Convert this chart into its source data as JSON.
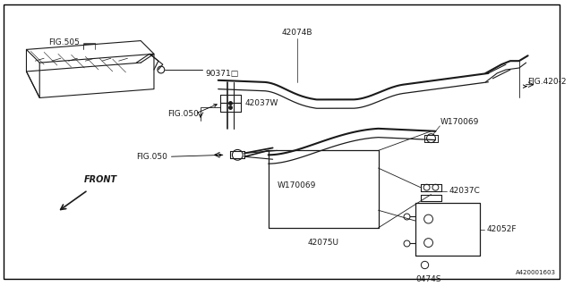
{
  "bg_color": "#ffffff",
  "border_color": "#000000",
  "line_color": "#1a1a1a",
  "fig_width": 6.4,
  "fig_height": 3.2,
  "dpi": 100,
  "watermark": "A420001603",
  "labels": {
    "fig505": "FIG.505",
    "90371": "90371□",
    "42074B": "42074B",
    "fig420_2": "FIG.420-2",
    "fig050_top": "FIG.050",
    "42037W": "42037W",
    "w170069_top": "W170069",
    "fig050_bot": "FIG.050",
    "w170069_bot": "W170069",
    "42075U": "42075U",
    "42037C": "42037C",
    "42052F": "42052F",
    "0474S": "0474S",
    "front": "FRONT"
  }
}
